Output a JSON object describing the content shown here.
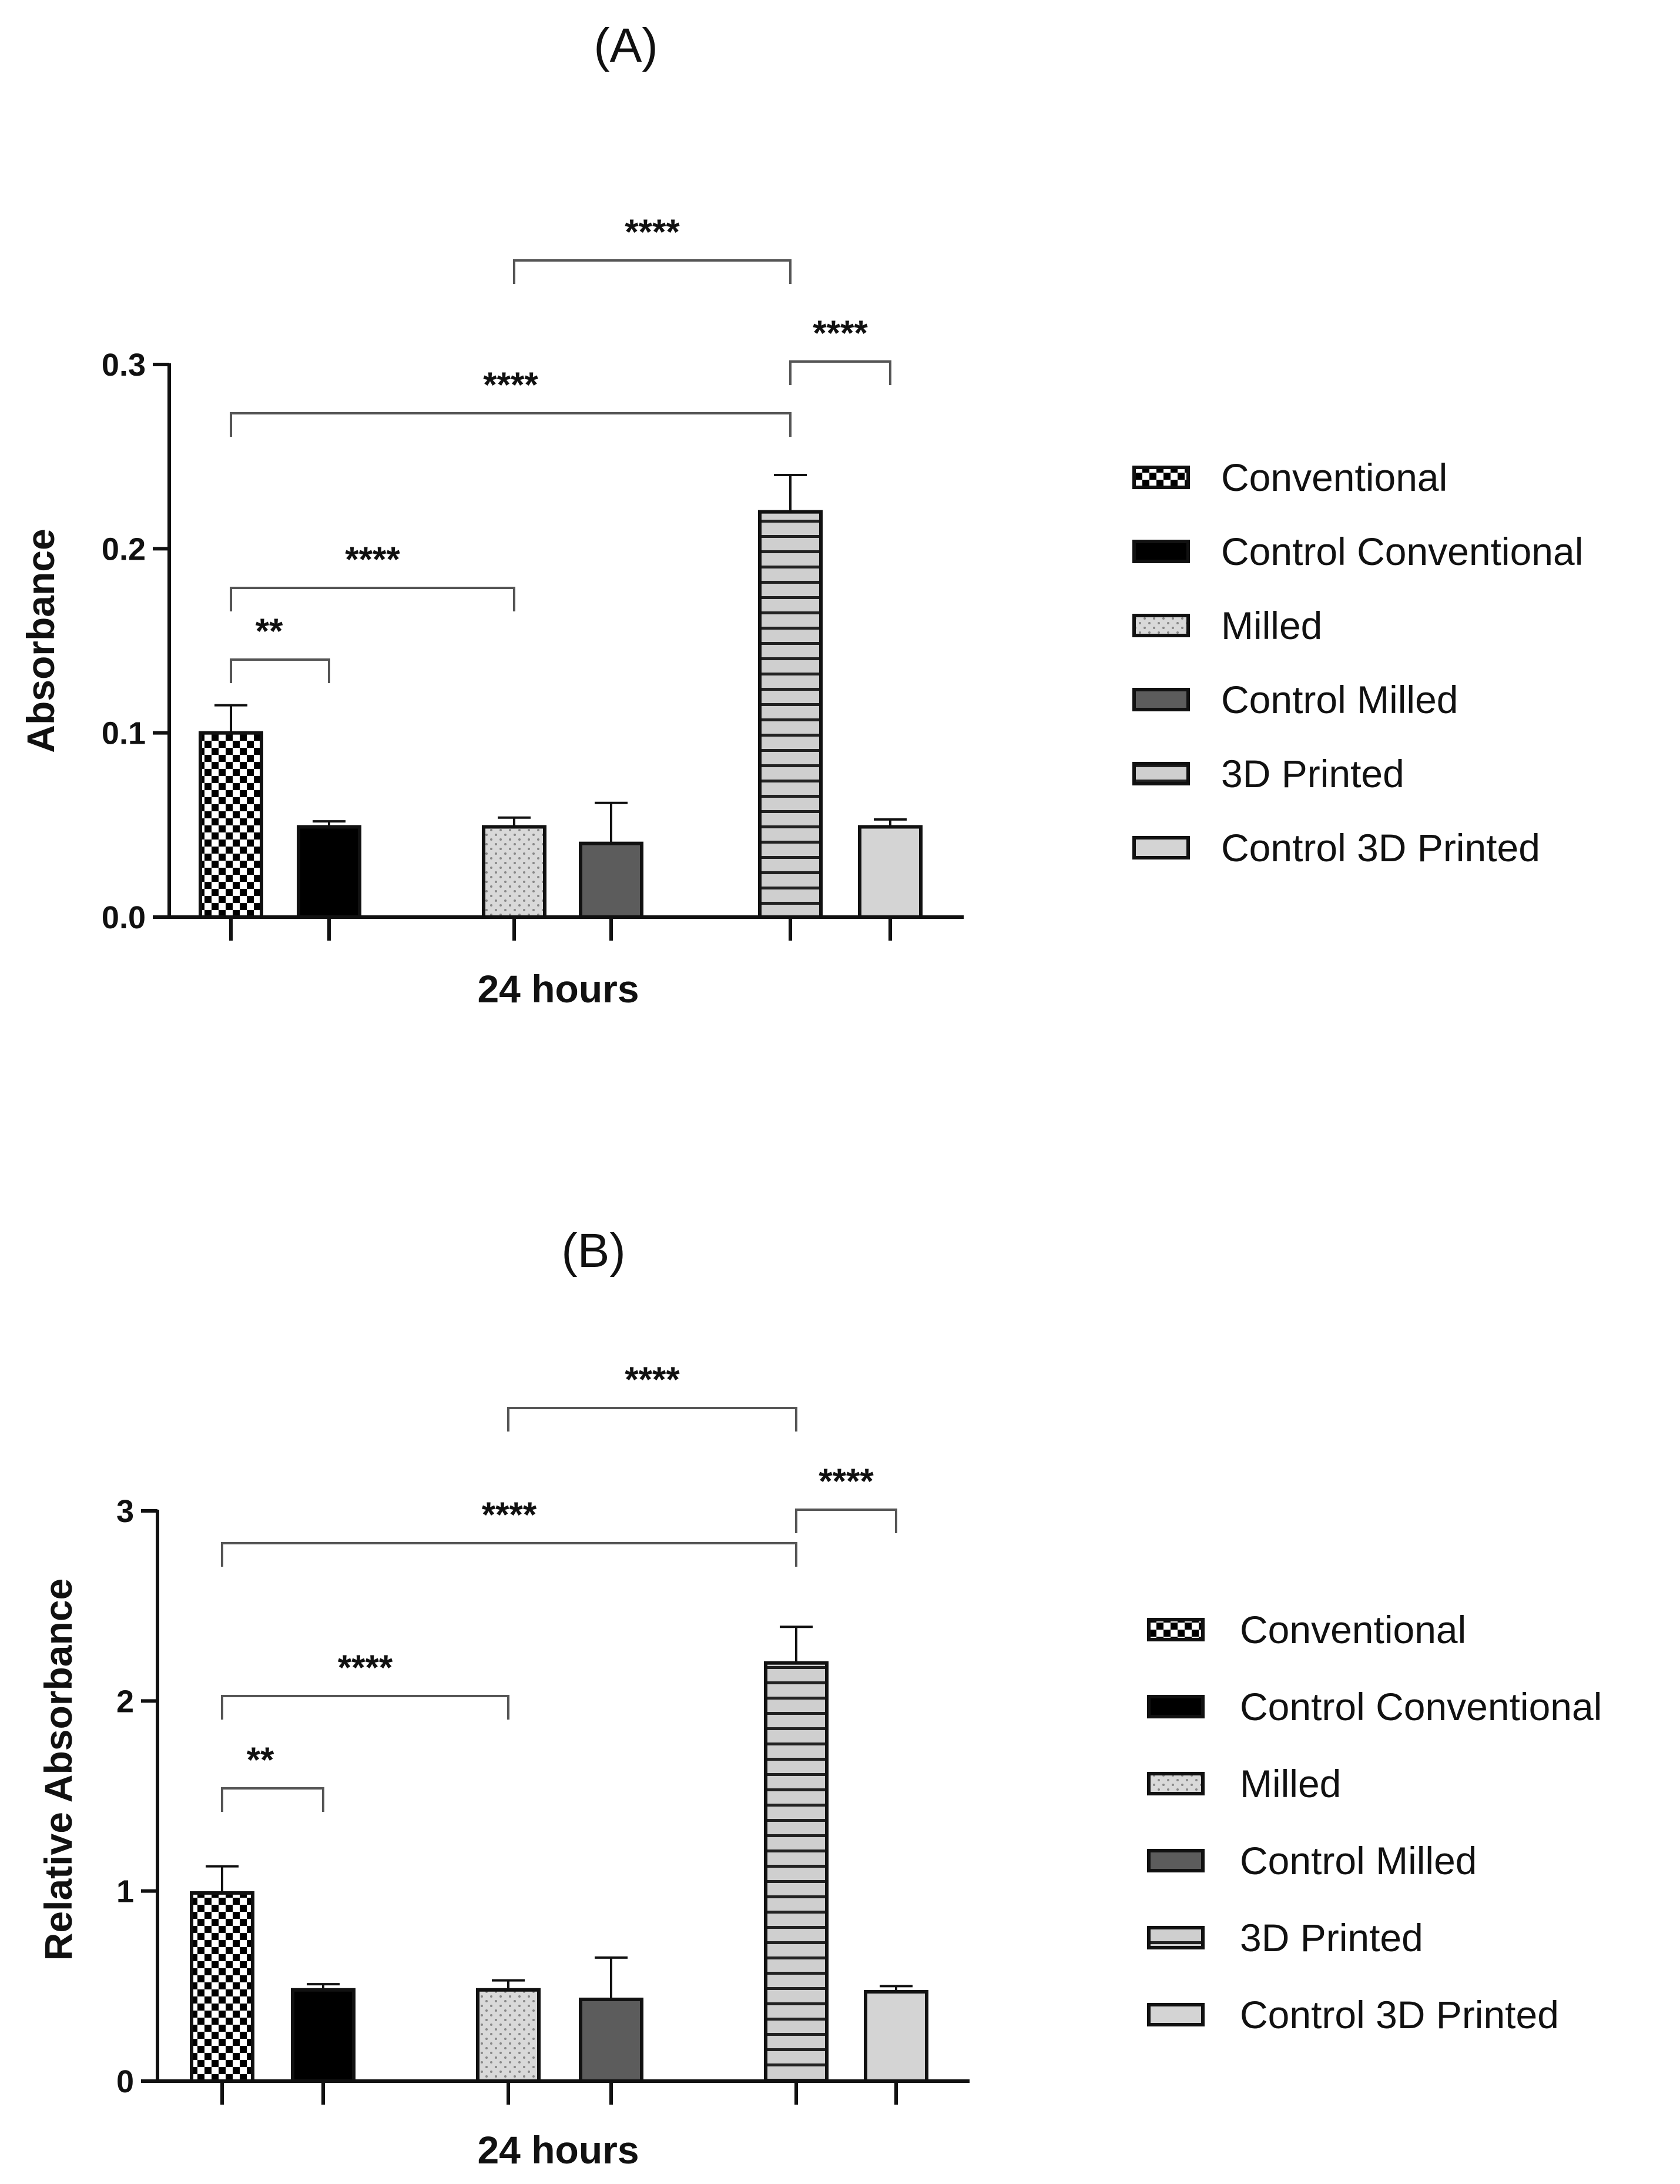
{
  "chart_data": [
    {
      "type": "bar",
      "panel": "(A)",
      "xlabel": "24 hours",
      "ylabel": "Absorbance",
      "ylim": [
        0,
        0.3
      ],
      "yticks": [
        0.0,
        0.1,
        0.2,
        0.3
      ],
      "ytick_labels": [
        "0.0",
        "0.1",
        "0.2",
        "0.3"
      ],
      "series": [
        {
          "name": "Conventional",
          "value": 0.1,
          "error": 0.015,
          "pattern": "checker"
        },
        {
          "name": "Control Conventional",
          "value": 0.049,
          "error": 0.003,
          "pattern": "solid-black"
        },
        {
          "name": "Milled",
          "value": 0.049,
          "error": 0.005,
          "pattern": "dots"
        },
        {
          "name": "Control Milled",
          "value": 0.04,
          "error": 0.022,
          "pattern": "dark-gray"
        },
        {
          "name": "3D Printed",
          "value": 0.22,
          "error": 0.02,
          "pattern": "hstripes"
        },
        {
          "name": "Control 3D Printed",
          "value": 0.049,
          "error": 0.004,
          "pattern": "light-gray"
        }
      ],
      "significance": [
        {
          "from": 0,
          "to": 1,
          "label": "**"
        },
        {
          "from": 0,
          "to": 2,
          "label": "****"
        },
        {
          "from": 0,
          "to": 4,
          "label": "****"
        },
        {
          "from": 4,
          "to": 5,
          "label": "****"
        },
        {
          "from": 2,
          "to": 4,
          "label": "****"
        }
      ]
    },
    {
      "type": "bar",
      "panel": "(B)",
      "xlabel": "24 hours",
      "ylabel": "Relative Absorbance",
      "ylim": [
        0,
        3
      ],
      "yticks": [
        0,
        1,
        2,
        3
      ],
      "ytick_labels": [
        "0",
        "1",
        "2",
        "3"
      ],
      "series": [
        {
          "name": "Conventional",
          "value": 0.99,
          "error": 0.14,
          "pattern": "checker"
        },
        {
          "name": "Control Conventional",
          "value": 0.48,
          "error": 0.03,
          "pattern": "solid-black"
        },
        {
          "name": "Milled",
          "value": 0.48,
          "error": 0.05,
          "pattern": "dots"
        },
        {
          "name": "Control Milled",
          "value": 0.43,
          "error": 0.22,
          "pattern": "dark-gray"
        },
        {
          "name": "3D Printed",
          "value": 2.2,
          "error": 0.19,
          "pattern": "hstripes"
        },
        {
          "name": "Control 3D Printed",
          "value": 0.47,
          "error": 0.03,
          "pattern": "light-gray"
        }
      ],
      "significance": [
        {
          "from": 0,
          "to": 1,
          "label": "**"
        },
        {
          "from": 0,
          "to": 2,
          "label": "****"
        },
        {
          "from": 0,
          "to": 4,
          "label": "****"
        },
        {
          "from": 4,
          "to": 5,
          "label": "****"
        },
        {
          "from": 2,
          "to": 4,
          "label": "****"
        }
      ]
    }
  ]
}
